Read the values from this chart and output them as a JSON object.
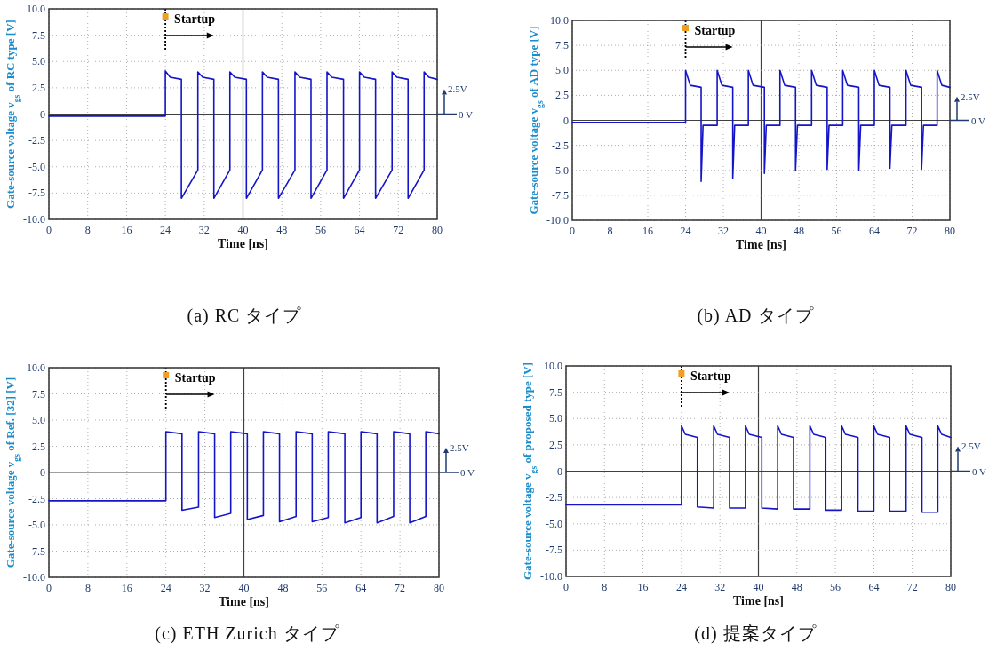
{
  "chart_data": [
    {
      "type": "line",
      "title": "(a) RC タイプ",
      "xlabel": "Time [ns]",
      "ylabel": "Gate-source voltage v$_{gs}$ of RC type [V]",
      "xlim": [
        0,
        80
      ],
      "ylim": [
        -10,
        10
      ],
      "xticks": [
        0,
        8,
        16,
        24,
        32,
        40,
        48,
        56,
        64,
        72,
        80
      ],
      "yticks": [
        {
          "value": 10,
          "label": "10.0"
        },
        {
          "value": 7.5,
          "label": "7.5"
        },
        {
          "value": 5,
          "label": "5.0"
        },
        {
          "value": 2.5,
          "label": "2.5"
        },
        {
          "value": 0,
          "label": "0"
        },
        {
          "value": -2.5,
          "label": "-2.5"
        },
        {
          "value": -5,
          "label": "-5.0"
        },
        {
          "value": -7.5,
          "label": "-7.5"
        },
        {
          "value": -10,
          "label": "-10.0"
        }
      ],
      "grid": true,
      "ref_lines": [
        {
          "axis": "x",
          "value": 24,
          "label": "Startup",
          "line_style": "dotted",
          "color": "#000000"
        }
      ],
      "annotations": [
        "2.5V",
        "0 V"
      ],
      "series": [
        {
          "color": "#1414c8",
          "x": [
            0,
            24,
            24,
            25,
            27.3,
            27.3,
            30.7,
            30.7,
            31.7,
            34,
            34,
            37.3,
            37.3,
            38.3,
            40.7,
            40.7,
            44,
            44,
            45,
            47.3,
            47.3,
            50.7,
            50.7,
            51.7,
            54,
            54,
            57.3,
            57.3,
            58.3,
            60.7,
            60.7,
            64,
            64,
            65,
            67.3,
            67.3,
            70.7,
            70.7,
            71.7,
            74,
            74,
            77.3,
            77.3,
            78.3,
            80
          ],
          "values": [
            -0.2,
            -0.2,
            4.1,
            3.5,
            3.3,
            -8.0,
            -5.3,
            4.0,
            3.5,
            3.3,
            -8.0,
            -5.3,
            4.0,
            3.5,
            3.3,
            -8.0,
            -5.3,
            4.0,
            3.5,
            3.3,
            -8.0,
            -5.3,
            4.0,
            3.5,
            3.3,
            -8.0,
            -5.3,
            4.0,
            3.5,
            3.3,
            -8.0,
            -5.3,
            4.0,
            3.5,
            3.3,
            -8.0,
            -5.3,
            4.0,
            3.5,
            3.3,
            -8.0,
            -5.3,
            4.0,
            3.5,
            3.3
          ]
        }
      ]
    },
    {
      "type": "line",
      "title": "(b) AD タイプ",
      "xlabel": "Time [ns]",
      "ylabel": "Gate-source voltage v$_{gs}$ of AD type [V]",
      "xlim": [
        0,
        80
      ],
      "ylim": [
        -10,
        10
      ],
      "xticks": [
        0,
        8,
        16,
        24,
        32,
        40,
        48,
        56,
        64,
        72,
        80
      ],
      "yticks": [
        {
          "value": 10,
          "label": "10.0"
        },
        {
          "value": 7.5,
          "label": "7.5"
        },
        {
          "value": 5,
          "label": "5.0"
        },
        {
          "value": 2.5,
          "label": "2.5"
        },
        {
          "value": 0,
          "label": "0"
        },
        {
          "value": -2.5,
          "label": "-2.5"
        },
        {
          "value": -5,
          "label": "-5.0"
        },
        {
          "value": -7.5,
          "label": "-7.5"
        },
        {
          "value": -10,
          "label": "-10.0"
        }
      ],
      "grid": true,
      "ref_lines": [
        {
          "axis": "x",
          "value": 24,
          "label": "Startup",
          "line_style": "dotted",
          "color": "#000000"
        }
      ],
      "annotations": [
        "2.5V",
        "0 V"
      ],
      "series": [
        {
          "color": "#1414c8",
          "x": [
            0,
            24,
            24,
            25,
            27.3,
            27.3,
            27.7,
            30.7,
            30.7,
            31.7,
            34,
            34,
            34.4,
            37.3,
            37.3,
            38.3,
            40.7,
            40.7,
            41.1,
            44,
            44,
            45,
            47.3,
            47.3,
            47.7,
            50.7,
            50.7,
            51.7,
            54,
            54,
            54.4,
            57.3,
            57.3,
            58.3,
            60.7,
            60.7,
            61.1,
            64,
            64,
            65,
            67.3,
            67.3,
            67.7,
            70.7,
            70.7,
            71.7,
            74,
            74,
            74.4,
            77.3,
            77.3,
            78.3,
            80
          ],
          "values": [
            -0.2,
            -0.2,
            5.0,
            3.5,
            3.3,
            -6.1,
            -0.5,
            -0.5,
            5.0,
            3.5,
            3.3,
            -5.8,
            -0.5,
            -0.5,
            5.0,
            3.5,
            3.3,
            -5.3,
            -0.5,
            -0.5,
            5.0,
            3.5,
            3.3,
            -5.0,
            -0.5,
            -0.5,
            5.0,
            3.5,
            3.3,
            -4.9,
            -0.5,
            -0.5,
            5.0,
            3.5,
            3.3,
            -5.0,
            -0.5,
            -0.5,
            5.0,
            3.5,
            3.3,
            -4.8,
            -0.5,
            -0.5,
            5.0,
            3.5,
            3.3,
            -4.9,
            -0.5,
            -0.5,
            5.0,
            3.5,
            3.3
          ]
        }
      ]
    },
    {
      "type": "line",
      "title": "(c) ETH Zurich タイプ",
      "xlabel": "Time [ns]",
      "ylabel": "Gate-source voltage v$_{gs}$ of Ref. [32] [V]",
      "xlim": [
        0,
        80
      ],
      "ylim": [
        -10,
        10
      ],
      "xticks": [
        0,
        8,
        16,
        24,
        32,
        40,
        48,
        56,
        64,
        72,
        80
      ],
      "yticks": [
        {
          "value": 10,
          "label": "10.0"
        },
        {
          "value": 7.5,
          "label": "7.5"
        },
        {
          "value": 5,
          "label": "5.0"
        },
        {
          "value": 2.5,
          "label": "2.5"
        },
        {
          "value": 0,
          "label": "0"
        },
        {
          "value": -2.5,
          "label": "-2.5"
        },
        {
          "value": -5,
          "label": "-5.0"
        },
        {
          "value": -7.5,
          "label": "-7.5"
        },
        {
          "value": -10,
          "label": "-10.0"
        }
      ],
      "grid": true,
      "ref_lines": [
        {
          "axis": "x",
          "value": 24,
          "label": "Startup",
          "line_style": "dotted",
          "color": "#000000"
        }
      ],
      "annotations": [
        "2.5V",
        "0 V"
      ],
      "series": [
        {
          "color": "#1414c8",
          "x": [
            0,
            24,
            24,
            27.3,
            27.3,
            30.7,
            30.7,
            34,
            34,
            37.3,
            37.3,
            40.7,
            40.7,
            44,
            44,
            47.3,
            47.3,
            50.7,
            50.7,
            54,
            54,
            57.3,
            57.3,
            60.7,
            60.7,
            64,
            64,
            67.3,
            67.3,
            70.7,
            70.7,
            74,
            74,
            77.3,
            77.3,
            80
          ],
          "values": [
            -2.7,
            -2.7,
            3.9,
            3.7,
            -3.6,
            -3.3,
            3.9,
            3.7,
            -4.3,
            -3.9,
            3.9,
            3.7,
            -4.5,
            -4.1,
            3.9,
            3.7,
            -4.7,
            -4.2,
            3.9,
            3.7,
            -4.7,
            -4.3,
            3.9,
            3.7,
            -4.8,
            -4.3,
            3.9,
            3.7,
            -4.8,
            -4.2,
            3.9,
            3.7,
            -4.8,
            -4.2,
            3.9,
            3.7
          ]
        }
      ]
    },
    {
      "type": "line",
      "title": "(d) 提案タイプ",
      "xlabel": "Time [ns]",
      "ylabel": "Gate-source voltage v$_{gs}$ of proposed type [V]",
      "xlim": [
        0,
        80
      ],
      "ylim": [
        -10,
        10
      ],
      "xticks": [
        0,
        8,
        16,
        24,
        32,
        40,
        48,
        56,
        64,
        72,
        80
      ],
      "yticks": [
        {
          "value": 10,
          "label": "10.0"
        },
        {
          "value": 7.5,
          "label": "7.5"
        },
        {
          "value": 5,
          "label": "5.0"
        },
        {
          "value": 2.5,
          "label": "2.5"
        },
        {
          "value": 0,
          "label": "0"
        },
        {
          "value": -2.5,
          "label": "-2.5"
        },
        {
          "value": -5,
          "label": "-5.0"
        },
        {
          "value": -7.5,
          "label": "-7.5"
        },
        {
          "value": -10,
          "label": "-10.0"
        }
      ],
      "grid": true,
      "ref_lines": [
        {
          "axis": "x",
          "value": 24,
          "label": "Startup",
          "line_style": "dotted",
          "color": "#000000"
        }
      ],
      "annotations": [
        "2.5V",
        "0 V"
      ],
      "series": [
        {
          "color": "#1414c8",
          "x": [
            0,
            24,
            24,
            24.8,
            27.3,
            27.3,
            30.7,
            30.7,
            31.5,
            34,
            34,
            37.3,
            37.3,
            38.1,
            40.7,
            40.7,
            44,
            44,
            44.8,
            47.3,
            47.3,
            50.7,
            50.7,
            51.5,
            54,
            54,
            57.3,
            57.3,
            58.1,
            60.7,
            60.7,
            64,
            64,
            64.8,
            67.3,
            67.3,
            70.7,
            70.7,
            71.5,
            74,
            74,
            77.3,
            77.3,
            78.1,
            80
          ],
          "values": [
            -3.2,
            -3.2,
            4.3,
            3.5,
            3.2,
            -3.4,
            -3.5,
            4.3,
            3.5,
            3.2,
            -3.5,
            -3.5,
            4.3,
            3.5,
            3.2,
            -3.5,
            -3.6,
            4.3,
            3.5,
            3.2,
            -3.6,
            -3.6,
            4.3,
            3.5,
            3.2,
            -3.7,
            -3.7,
            4.3,
            3.5,
            3.2,
            -3.8,
            -3.8,
            4.3,
            3.5,
            3.2,
            -3.8,
            -3.8,
            4.3,
            3.5,
            3.2,
            -3.9,
            -3.9,
            4.3,
            3.5,
            3.2
          ]
        }
      ]
    }
  ]
}
